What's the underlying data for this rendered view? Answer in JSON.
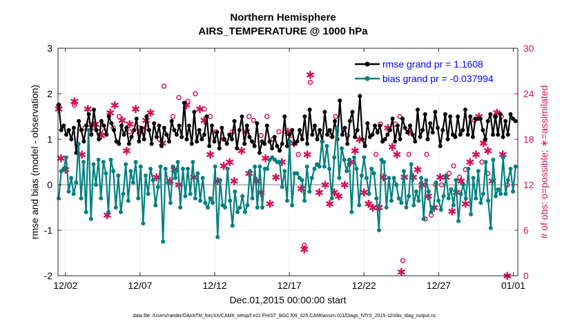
{
  "chart_data": {
    "type": "line",
    "title": "Northern Hemisphere",
    "subtitle": "AIRS_TEMPERATURE @ 1000 hPa",
    "xlabel": "Dec.01,2015 00:00:00 start",
    "ylabel": "rmse and bias (model - observation)",
    "ylabel_right": "# of obs: o=possible; ∗=assimilated",
    "ylim": [
      -2,
      3
    ],
    "ylim_right": [
      0,
      30
    ],
    "xlim_days": [
      0.5,
      31.3
    ],
    "x_tick_labels": [
      "12/02",
      "12/07",
      "12/12",
      "12/17",
      "12/22",
      "12/27",
      "01/01"
    ],
    "x_tick_days": [
      1,
      6,
      11,
      16,
      21,
      26,
      31
    ],
    "y_tick_labels": [
      "-2",
      "-1",
      "0",
      "1",
      "2",
      "3"
    ],
    "y_tick_values": [
      -2,
      -1,
      0,
      1,
      2,
      3
    ],
    "y_right_tick_labels": [
      "0",
      "6",
      "12",
      "18",
      "24",
      "30"
    ],
    "y_right_tick_values": [
      0,
      6,
      12,
      18,
      24,
      30
    ],
    "legend_location": "top-right",
    "series": [
      {
        "name": "rmse grand pr = 1.1608",
        "color": "#000000",
        "marker": "filled-circle",
        "values": [
          1.75,
          1.2,
          1.3,
          1.1,
          1.2,
          1.0,
          1.25,
          0.7,
          1.4,
          1.2,
          0.95,
          1.3,
          1.55,
          1.1,
          1.65,
          1.2,
          1.0,
          1.4,
          1.3,
          1.1,
          1.5,
          1.35,
          1.2,
          0.95,
          0.9,
          1.3,
          1.1,
          1.25,
          0.9,
          1.05,
          1.2,
          1.45,
          0.95,
          1.25,
          1.0,
          1.5,
          1.2,
          0.9,
          1.35,
          1.05,
          1.3,
          0.85,
          1.25,
          1.1,
          0.95,
          1.4,
          1.2,
          1.1,
          1.3,
          1.05,
          1.8,
          1.0,
          1.3,
          0.9,
          1.6,
          0.95,
          1.2,
          1.0,
          1.1,
          1.5,
          0.85,
          1.3,
          0.95,
          1.15,
          0.8,
          1.25,
          1.0,
          0.9,
          1.1,
          1.0,
          1.4,
          0.8,
          1.2,
          1.5,
          0.9,
          1.3,
          1.05,
          0.95,
          0.85,
          1.35,
          0.7,
          0.95,
          0.9,
          1.3,
          0.95,
          0.8,
          1.05,
          0.85,
          0.75,
          0.9,
          1.5,
          0.85,
          1.1,
          1.2,
          0.9,
          0.95,
          1.2,
          1.0,
          1.5,
          0.9,
          1.65,
          1.1,
          1.3,
          1.0,
          1.2,
          0.95,
          1.6,
          1.1,
          1.2,
          1.05,
          1.4,
          1.0,
          1.85,
          1.1,
          1.25,
          0.9,
          1.4,
          1.6,
          1.05,
          1.2,
          1.95,
          1.0,
          0.85,
          1.35,
          1.05,
          1.1,
          1.3,
          1.15,
          1.3,
          0.95,
          1.0,
          1.1,
          1.2,
          1.45,
          0.95,
          1.3,
          1.0,
          1.45,
          1.25,
          1.15,
          1.3,
          1.1,
          0.95,
          1.65,
          1.05,
          1.2,
          1.55,
          1.0,
          1.35,
          1.15,
          1.6,
          1.25,
          0.85,
          1.2,
          1.55,
          1.0,
          1.5,
          1.1,
          1.05,
          1.5,
          1.1,
          1.2,
          1.65,
          1.1,
          1.5,
          1.05,
          1.45,
          1.45,
          1.45,
          1.2,
          1.0,
          1.4,
          1.55,
          1.1,
          1.5,
          1.1,
          1.55,
          1.05,
          1.4,
          1.1,
          1.55,
          1.45,
          1.4
        ]
      },
      {
        "name": "bias grand pr = -0.037994",
        "color": "#008080",
        "marker": "filled-circle",
        "values": [
          -0.3,
          0.3,
          0.35,
          0.6,
          -0.15,
          0.15,
          -0.2,
          0.05,
          0.9,
          -0.3,
          0.5,
          -0.6,
          1.2,
          -0.75,
          0.45,
          0.0,
          0.55,
          -0.3,
          0.5,
          0.25,
          -0.6,
          0.55,
          0.3,
          -0.5,
          0.2,
          -0.6,
          -0.2,
          0.45,
          -0.35,
          0.3,
          0.05,
          0.5,
          -0.3,
          0.4,
          -0.85,
          0.2,
          -0.2,
          0.35,
          0.1,
          -0.45,
          -0.05,
          0.4,
          -1.25,
          0.35,
          0.05,
          -0.4,
          0.4,
          0.15,
          0.5,
          -0.5,
          0.35,
          -0.25,
          0.35,
          -0.2,
          0.5,
          -0.3,
          0.25,
          -0.35,
          0.15,
          -0.4,
          -0.5,
          -0.3,
          -0.4,
          0.4,
          -1.15,
          0.1,
          -0.45,
          -0.5,
          0.35,
          -0.35,
          -0.9,
          -0.15,
          -0.6,
          -0.5,
          -0.25,
          -0.6,
          -0.45,
          0.3,
          -0.3,
          0.4,
          -0.5,
          0.4,
          -0.5,
          0.35,
          0.35,
          0.55,
          0.6,
          0.55,
          0.5,
          0.5,
          -0.05,
          0.3,
          -0.35,
          0.95,
          -0.45,
          0.25,
          0.25,
          0.15,
          0.1,
          -0.35,
          0.4,
          -0.15,
          0.15,
          0.35,
          0.45,
          0.4,
          0.95,
          0.4,
          0.85,
          0.35,
          -0.3,
          0.6,
          1.25,
          0.15,
          0.8,
          0.55,
          0.3,
          0.55,
          -0.6,
          0.6,
          0.35,
          -0.45,
          0.2,
          0.6,
          0.15,
          -0.2,
          0.35,
          0.25,
          -0.3,
          -1.0,
          0.55,
          0.5,
          -0.5,
          0.15,
          -0.35,
          0.15,
          0.0,
          -0.3,
          -0.4,
          0.3,
          -0.5,
          -0.25,
          0.45,
          -0.45,
          -0.15,
          -0.35,
          0.15,
          -0.75,
          0.1,
          -0.15,
          -0.6,
          -0.5,
          0.05,
          -0.35,
          -0.55,
          -0.25,
          0.2,
          -0.3,
          -0.1,
          -0.45,
          0.1,
          -0.8,
          -0.2,
          0.0,
          -0.3,
          0.35,
          -0.65,
          0.15,
          -0.3,
          0.3,
          -0.4,
          -0.2,
          0.5,
          -0.35,
          -0.95,
          0.55,
          -0.25,
          -0.1,
          -0.2,
          0.6,
          -0.2,
          0.1,
          0.35,
          -0.15,
          0.4
        ]
      }
    ],
    "obs_possible": {
      "name": "possible",
      "marker": "o",
      "color": "#d4145a",
      "points": [
        [
          0.55,
          22.5
        ],
        [
          1.6,
          22.5
        ],
        [
          2.3,
          19.5
        ],
        [
          2.6,
          20
        ],
        [
          2.8,
          19.5
        ],
        [
          2.95,
          20
        ],
        [
          3.2,
          19.5
        ],
        [
          3.6,
          19
        ],
        [
          4.2,
          19.5
        ],
        [
          4.6,
          21
        ],
        [
          5.3,
          19
        ],
        [
          5.9,
          19.5
        ],
        [
          6.4,
          19.5
        ],
        [
          7.3,
          18
        ],
        [
          7.6,
          25
        ],
        [
          8.2,
          21
        ],
        [
          8.6,
          23.5
        ],
        [
          9.2,
          23
        ],
        [
          9.7,
          24
        ],
        [
          10.3,
          22
        ],
        [
          10.7,
          21
        ],
        [
          11.1,
          19
        ],
        [
          11.6,
          18
        ],
        [
          12.2,
          19
        ],
        [
          13.3,
          21
        ],
        [
          13.6,
          20.5
        ],
        [
          14.1,
          18.5
        ],
        [
          14.5,
          21
        ],
        [
          14.9,
          18
        ],
        [
          15.3,
          19
        ],
        [
          16.1,
          18.5
        ],
        [
          16.6,
          16
        ],
        [
          17.4,
          25.5
        ],
        [
          17.0,
          4
        ],
        [
          18.8,
          18.5
        ],
        [
          19.1,
          21
        ],
        [
          19.9,
          18.5
        ],
        [
          21.8,
          16
        ],
        [
          22.1,
          20
        ],
        [
          23.1,
          20
        ],
        [
          23.4,
          21
        ],
        [
          23.6,
          2
        ],
        [
          24.0,
          16
        ],
        [
          25.1,
          7.5
        ],
        [
          25.2,
          16
        ],
        [
          25.5,
          8
        ],
        [
          25.8,
          12
        ],
        [
          26.2,
          12
        ],
        [
          26.7,
          13.5
        ],
        [
          27.0,
          14.5
        ],
        [
          27.4,
          13
        ],
        [
          27.8,
          14
        ],
        [
          28.4,
          20.5
        ],
        [
          28.9,
          15
        ],
        [
          29.3,
          13.5
        ],
        [
          29.8,
          21
        ],
        [
          30.2,
          21
        ],
        [
          30.6,
          12
        ]
      ]
    },
    "obs_assimilated": {
      "name": "assimilated",
      "marker": "*",
      "color": "#d4145a",
      "points": [
        [
          0.55,
          22
        ],
        [
          0.7,
          15.5
        ],
        [
          1.0,
          14
        ],
        [
          1.6,
          23
        ],
        [
          2.1,
          16
        ],
        [
          2.5,
          22
        ],
        [
          3.0,
          20
        ],
        [
          3.4,
          18.5
        ],
        [
          3.8,
          8
        ],
        [
          4.0,
          21.5
        ],
        [
          4.3,
          22.5
        ],
        [
          4.8,
          20.5
        ],
        [
          5.1,
          16.5
        ],
        [
          5.3,
          20
        ],
        [
          5.7,
          22
        ],
        [
          6.0,
          19
        ],
        [
          6.4,
          20.5
        ],
        [
          6.7,
          21.5
        ],
        [
          7.1,
          13
        ],
        [
          7.5,
          17.5
        ],
        [
          8.0,
          12.5
        ],
        [
          8.3,
          14
        ],
        [
          8.6,
          12
        ],
        [
          9.1,
          22.5
        ],
        [
          9.6,
          13
        ],
        [
          10.0,
          22
        ],
        [
          10.3,
          20.5
        ],
        [
          10.7,
          16
        ],
        [
          11.2,
          12.5
        ],
        [
          11.6,
          14.5
        ],
        [
          12.0,
          15
        ],
        [
          12.3,
          12.5
        ],
        [
          12.8,
          16.5
        ],
        [
          13.1,
          19
        ],
        [
          13.3,
          13.5
        ],
        [
          13.8,
          12.5
        ],
        [
          14.1,
          11
        ],
        [
          14.4,
          15.5
        ],
        [
          14.7,
          9.5
        ],
        [
          15.1,
          13
        ],
        [
          15.5,
          15
        ],
        [
          15.9,
          19
        ],
        [
          16.3,
          17.5
        ],
        [
          16.8,
          11.5
        ],
        [
          17.0,
          3.5
        ],
        [
          17.2,
          16
        ],
        [
          17.4,
          26.5
        ],
        [
          18.0,
          11
        ],
        [
          18.4,
          12
        ],
        [
          18.7,
          9.5
        ],
        [
          19.0,
          11
        ],
        [
          19.3,
          10.5
        ],
        [
          19.7,
          12
        ],
        [
          20.1,
          15
        ],
        [
          20.4,
          16.5
        ],
        [
          20.7,
          18
        ],
        [
          21.0,
          11
        ],
        [
          21.3,
          9.5
        ],
        [
          21.6,
          9
        ],
        [
          22.0,
          9
        ],
        [
          22.3,
          13
        ],
        [
          22.6,
          19.5
        ],
        [
          22.9,
          17
        ],
        [
          23.2,
          16
        ],
        [
          23.5,
          0.5
        ],
        [
          23.7,
          13
        ],
        [
          24.0,
          19
        ],
        [
          24.3,
          13
        ],
        [
          24.6,
          14
        ],
        [
          24.9,
          12
        ],
        [
          25.3,
          10.5
        ],
        [
          25.7,
          9
        ],
        [
          26.1,
          13
        ],
        [
          26.5,
          13
        ],
        [
          26.9,
          8.5
        ],
        [
          27.2,
          11
        ],
        [
          27.5,
          12.5
        ],
        [
          27.8,
          9.5
        ],
        [
          28.1,
          15
        ],
        [
          28.5,
          16
        ],
        [
          28.7,
          21
        ],
        [
          29.0,
          17.5
        ],
        [
          29.3,
          16.5
        ],
        [
          29.6,
          12.5
        ],
        [
          29.9,
          21.5
        ],
        [
          30.3,
          16
        ],
        [
          30.6,
          0
        ],
        [
          30.8,
          26
        ]
      ]
    }
  },
  "footnote": "data file: /Users/raeder/DAI/ATM_forcXX/CAM6_setup/f.e21.FHIST_BGC.f09_025.CAM6assim.011/Diags_NTrS_2015-12/obs_diag_output.nc"
}
